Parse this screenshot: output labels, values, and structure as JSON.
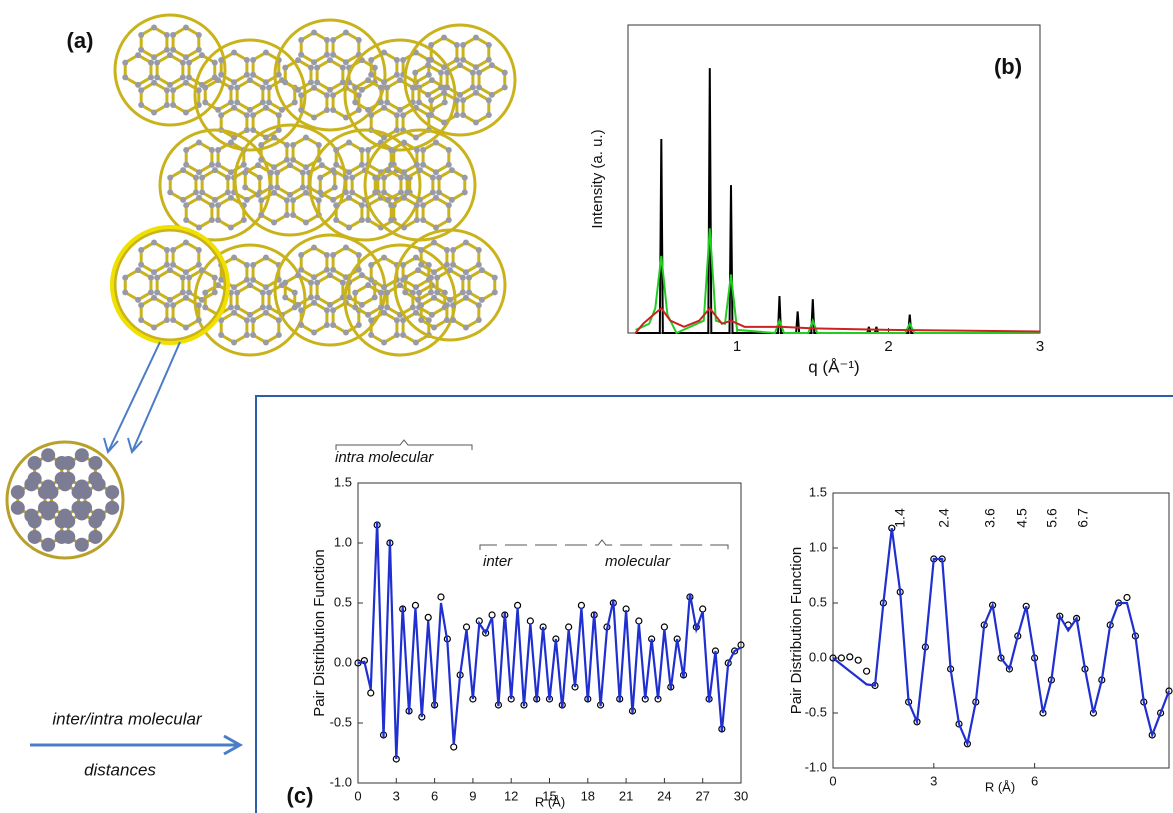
{
  "labels": {
    "a": "(a)",
    "c": "(c)"
  },
  "caption": {
    "line1": "inter/intra molecular",
    "line2": "distances"
  },
  "chart_data": [
    {
      "type": "line",
      "panel_label": "(b)",
      "y_label": "Intensity (a. u.)",
      "x_label": "q (Å⁻¹)",
      "xlim": [
        0.28,
        3
      ],
      "xticks": [
        1,
        2,
        3
      ],
      "ylim": [
        0,
        1
      ],
      "series": [
        {
          "color": "#000000",
          "mode": "line",
          "x": [
            0.33,
            0.49,
            0.5,
            0.51,
            0.81,
            0.82,
            0.83,
            0.95,
            0.96,
            0.97,
            1.27,
            1.28,
            1.29,
            1.39,
            1.4,
            1.41,
            1.49,
            1.5,
            1.51,
            1.86,
            1.87,
            1.88,
            1.91,
            1.92,
            1.93,
            2.13,
            2.14,
            2.15,
            3.0
          ],
          "values": [
            0,
            0,
            0.63,
            0,
            0,
            0.86,
            0,
            0,
            0.48,
            0,
            0,
            0.12,
            0,
            0,
            0.07,
            0,
            0,
            0.11,
            0,
            0,
            0.02,
            0,
            0,
            0.02,
            0,
            0,
            0.06,
            0,
            0
          ]
        },
        {
          "color": "#22cc22",
          "mode": "line",
          "x": [
            0.33,
            0.42,
            0.46,
            0.5,
            0.54,
            0.6,
            0.78,
            0.82,
            0.86,
            0.92,
            0.96,
            1.0,
            1.25,
            1.28,
            1.31,
            1.47,
            1.5,
            1.53,
            2.11,
            2.14,
            2.17,
            3.0
          ],
          "values": [
            0.01,
            0.03,
            0.08,
            0.25,
            0.06,
            0,
            0.04,
            0.34,
            0.04,
            0.03,
            0.19,
            0.01,
            0,
            0.04,
            0,
            0,
            0.04,
            0,
            0,
            0.03,
            0,
            0
          ]
        },
        {
          "color": "#cc2222",
          "mode": "line",
          "x": [
            0.33,
            0.38,
            0.45,
            0.5,
            0.56,
            0.65,
            0.75,
            0.82,
            0.9,
            0.96,
            1.05,
            1.3,
            1.5,
            2.0,
            3.0
          ],
          "values": [
            0,
            0.03,
            0.06,
            0.08,
            0.04,
            0.02,
            0.04,
            0.08,
            0.03,
            0.04,
            0.02,
            0.02,
            0.015,
            0.01,
            0.005
          ]
        }
      ]
    },
    {
      "type": "line",
      "y_label": "Pair Distribution Function",
      "x_label": "R (Å)",
      "annotations": [
        "intra molecular",
        "inter",
        "molecular"
      ],
      "xlim": [
        0,
        30
      ],
      "xticks": [
        0,
        3,
        6,
        9,
        12,
        15,
        18,
        21,
        24,
        27,
        30
      ],
      "ylim": [
        -1,
        1.5
      ],
      "yticks": [
        {
          "value": -1,
          "label": "-1.0"
        },
        -0.5,
        {
          "value": 0,
          "label": "0.0"
        },
        0.5,
        {
          "value": 1,
          "label": "1.0"
        },
        1.5
      ],
      "x": [
        0,
        0.5,
        1,
        1.5,
        2,
        2.5,
        3,
        3.5,
        4,
        4.5,
        5,
        5.5,
        6,
        6.5,
        7,
        7.5,
        8,
        8.5,
        9,
        9.5,
        10,
        10.5,
        11,
        11.5,
        12,
        12.5,
        13,
        13.5,
        14,
        14.5,
        15,
        15.5,
        16,
        16.5,
        17,
        17.5,
        18,
        18.5,
        19,
        19.5,
        20,
        20.5,
        21,
        21.5,
        22,
        22.5,
        23,
        23.5,
        24,
        24.5,
        25,
        25.5,
        26,
        26.5,
        27,
        27.5,
        28,
        28.5,
        29,
        29.5,
        30
      ],
      "series": [
        {
          "color": "#000000",
          "mode": "markers",
          "values": [
            0,
            0.02,
            -0.25,
            1.15,
            -0.6,
            1.0,
            -0.8,
            0.45,
            -0.4,
            0.48,
            -0.45,
            0.38,
            -0.35,
            0.55,
            0.2,
            -0.7,
            -0.1,
            0.3,
            -0.3,
            0.35,
            0.25,
            0.4,
            -0.35,
            0.4,
            -0.3,
            0.48,
            -0.35,
            0.35,
            -0.3,
            0.3,
            -0.3,
            0.2,
            -0.35,
            0.3,
            -0.2,
            0.48,
            -0.3,
            0.4,
            -0.35,
            0.3,
            0.5,
            -0.3,
            0.45,
            -0.4,
            0.35,
            -0.3,
            0.2,
            -0.3,
            0.3,
            -0.2,
            0.2,
            -0.1,
            0.55,
            0.3,
            0.45,
            -0.3,
            0.1,
            -0.55,
            0,
            0.1,
            0.15
          ]
        },
        {
          "color": "#1f2fd0",
          "mode": "line",
          "values": [
            0,
            0.01,
            -0.22,
            1.18,
            -0.62,
            1.02,
            -0.8,
            0.47,
            -0.42,
            0.46,
            -0.45,
            0.35,
            -0.37,
            0.5,
            0.18,
            -0.68,
            -0.1,
            0.28,
            -0.3,
            0.33,
            0.25,
            0.38,
            -0.36,
            0.42,
            -0.3,
            0.46,
            -0.36,
            0.33,
            -0.32,
            0.3,
            -0.31,
            0.2,
            -0.38,
            0.28,
            -0.2,
            0.46,
            -0.32,
            0.42,
            -0.36,
            0.28,
            0.52,
            -0.32,
            0.44,
            -0.42,
            0.33,
            -0.3,
            0.2,
            -0.3,
            0.28,
            -0.22,
            0.2,
            -0.12,
            0.58,
            0.28,
            0.43,
            -0.33,
            0.1,
            -0.57,
            0,
            0.1,
            0.13
          ]
        }
      ]
    },
    {
      "type": "line",
      "y_label": "Pair Distribution Function",
      "x_label": "R (Å)",
      "peak_labels": [
        1.4,
        2.4,
        3.6,
        4.5,
        5.6,
        6.7
      ],
      "xlim": [
        0,
        10
      ],
      "xticks": [
        0,
        3,
        6
      ],
      "ylim": [
        -1,
        1.5
      ],
      "yticks": [
        {
          "value": -1,
          "label": "-1.0"
        },
        -0.5,
        {
          "value": 0,
          "label": "0.0"
        },
        0.5,
        {
          "value": 1,
          "label": "1.0"
        },
        1.5
      ],
      "x": [
        0,
        0.25,
        0.5,
        0.75,
        1,
        1.25,
        1.5,
        1.75,
        2,
        2.25,
        2.5,
        2.75,
        3,
        3.25,
        3.5,
        3.75,
        4,
        4.25,
        4.5,
        4.75,
        5,
        5.25,
        5.5,
        5.75,
        6,
        6.25,
        6.5,
        6.75,
        7,
        7.25,
        7.5,
        7.75,
        8,
        8.25,
        8.5,
        8.75,
        9,
        9.25,
        9.5,
        9.75,
        10
      ],
      "series": [
        {
          "color": "#000000",
          "mode": "markers",
          "values": [
            0,
            0,
            0.01,
            -0.02,
            -0.12,
            -0.25,
            0.5,
            1.18,
            0.6,
            -0.4,
            -0.58,
            0.1,
            0.9,
            0.9,
            -0.1,
            -0.6,
            -0.78,
            -0.4,
            0.3,
            0.48,
            0,
            -0.1,
            0.2,
            0.47,
            0,
            -0.5,
            -0.2,
            0.38,
            0.3,
            0.36,
            -0.1,
            -0.5,
            -0.2,
            0.3,
            0.5,
            0.55,
            0.2,
            -0.4,
            -0.7,
            -0.5,
            -0.3
          ]
        },
        {
          "color": "#1f2fd0",
          "mode": "line",
          "values": [
            0,
            -0.06,
            -0.12,
            -0.18,
            -0.24,
            -0.25,
            0.5,
            1.18,
            0.6,
            -0.4,
            -0.58,
            0.1,
            0.9,
            0.9,
            -0.1,
            -0.6,
            -0.78,
            -0.4,
            0.3,
            0.48,
            0,
            -0.1,
            0.2,
            0.47,
            0,
            -0.5,
            -0.2,
            0.38,
            0.25,
            0.36,
            -0.1,
            -0.5,
            -0.2,
            0.3,
            0.5,
            0.5,
            0.2,
            -0.4,
            -0.7,
            -0.5,
            -0.3
          ]
        }
      ]
    }
  ]
}
